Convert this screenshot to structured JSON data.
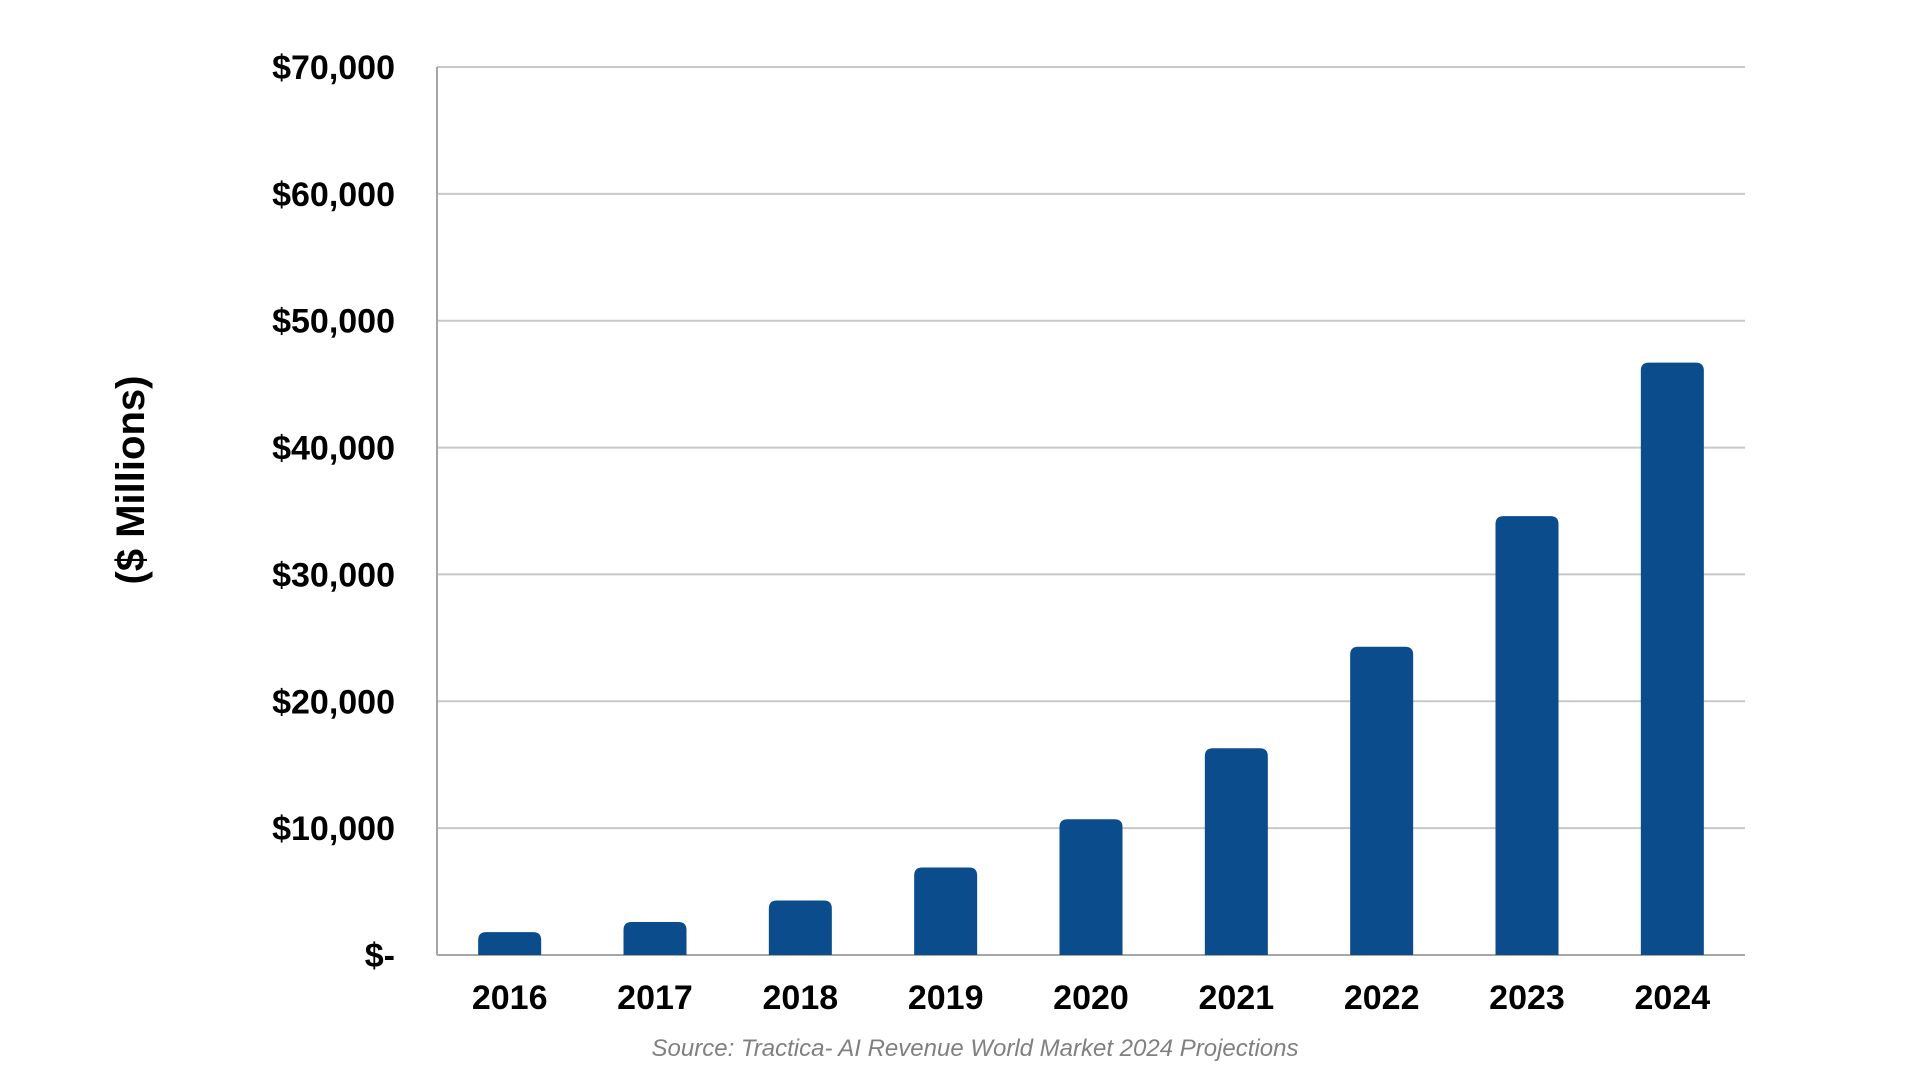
{
  "chart_data": {
    "type": "bar",
    "categories": [
      "2016",
      "2017",
      "2018",
      "2019",
      "2020",
      "2021",
      "2022",
      "2023",
      "2024"
    ],
    "values": [
      1800,
      2600,
      4300,
      6900,
      10700,
      16300,
      24300,
      34600,
      46700
    ],
    "ylabel": "($ Millions)",
    "xlabel": "",
    "title": "",
    "ylim": [
      0,
      70000
    ],
    "yticks": [
      0,
      10000,
      20000,
      30000,
      40000,
      50000,
      60000,
      70000
    ],
    "ytick_labels": [
      "$-",
      "$10,000",
      "$20,000",
      "$30,000",
      "$40,000",
      "$50,000",
      "$60,000",
      "$70,000"
    ],
    "grid": true,
    "legend": "none",
    "bar_color": "#0b4d8c",
    "source": "Source: Tractica- AI Revenue World Market 2024 Projections"
  }
}
